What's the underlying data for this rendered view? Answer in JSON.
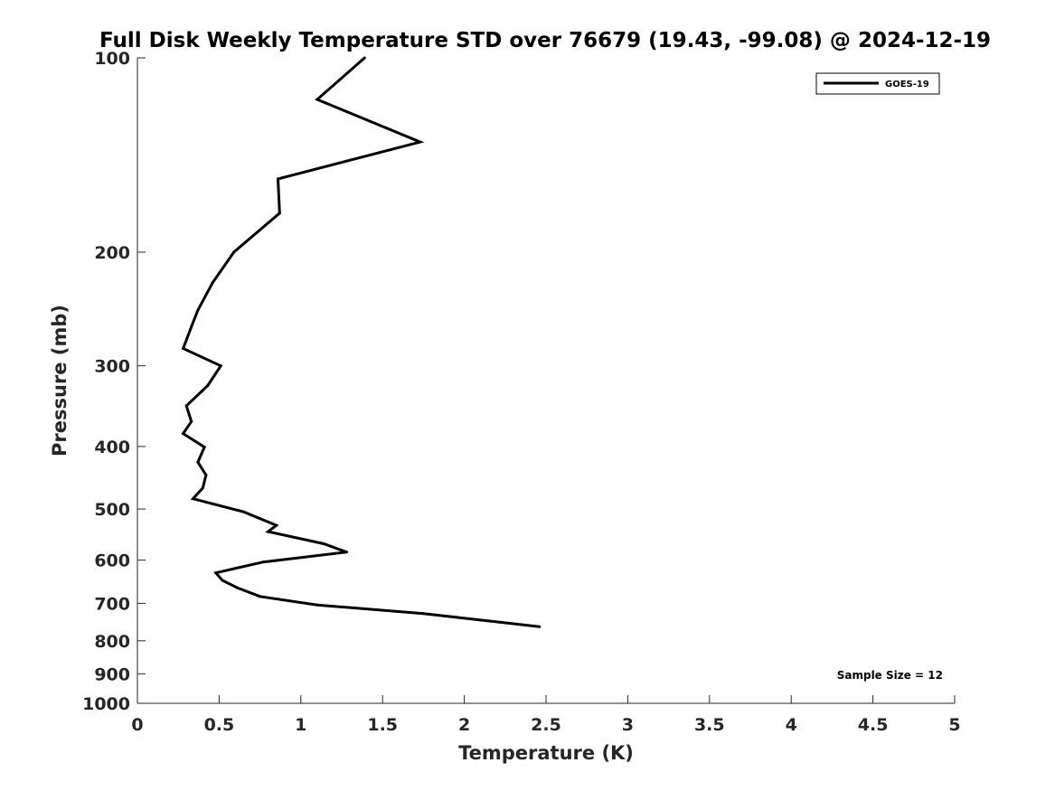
{
  "chart_data": {
    "type": "line",
    "title": "Full Disk Weekly Temperature STD over 76679 (19.43, -99.08) @ 2024-12-19",
    "xlabel": "Temperature (K)",
    "ylabel": "Pressure (mb)",
    "xlim": [
      0,
      5
    ],
    "ylim": [
      100,
      1000
    ],
    "yscale": "log",
    "y_reversed": true,
    "grid": false,
    "legend_placement": "top-right",
    "x_ticks": [
      "0",
      "0.5",
      "1",
      "1.5",
      "2",
      "2.5",
      "3",
      "3.5",
      "4",
      "4.5",
      "5"
    ],
    "y_ticks": [
      "100",
      "200",
      "300",
      "400",
      "500",
      "600",
      "700",
      "800",
      "900",
      "1000"
    ],
    "series": [
      {
        "name": "GOES-19",
        "color": "#000000",
        "points": [
          {
            "x": 1.39,
            "y": 100
          },
          {
            "x": 1.1,
            "y": 116
          },
          {
            "x": 1.73,
            "y": 135
          },
          {
            "x": 0.86,
            "y": 154
          },
          {
            "x": 0.87,
            "y": 174
          },
          {
            "x": 0.59,
            "y": 200
          },
          {
            "x": 0.46,
            "y": 223
          },
          {
            "x": 0.37,
            "y": 246
          },
          {
            "x": 0.33,
            "y": 261
          },
          {
            "x": 0.28,
            "y": 282
          },
          {
            "x": 0.51,
            "y": 300
          },
          {
            "x": 0.43,
            "y": 322
          },
          {
            "x": 0.3,
            "y": 346
          },
          {
            "x": 0.33,
            "y": 366
          },
          {
            "x": 0.28,
            "y": 382
          },
          {
            "x": 0.41,
            "y": 401
          },
          {
            "x": 0.37,
            "y": 423
          },
          {
            "x": 0.42,
            "y": 443
          },
          {
            "x": 0.4,
            "y": 464
          },
          {
            "x": 0.34,
            "y": 482
          },
          {
            "x": 0.65,
            "y": 505
          },
          {
            "x": 0.85,
            "y": 530
          },
          {
            "x": 0.8,
            "y": 542
          },
          {
            "x": 1.14,
            "y": 566
          },
          {
            "x": 1.28,
            "y": 583
          },
          {
            "x": 0.77,
            "y": 604
          },
          {
            "x": 0.48,
            "y": 628
          },
          {
            "x": 0.52,
            "y": 645
          },
          {
            "x": 0.61,
            "y": 662
          },
          {
            "x": 0.75,
            "y": 683
          },
          {
            "x": 1.1,
            "y": 704
          },
          {
            "x": 1.75,
            "y": 726
          },
          {
            "x": 2.1,
            "y": 743
          },
          {
            "x": 2.46,
            "y": 761
          }
        ]
      }
    ],
    "annotation": "Sample Size = 12"
  }
}
